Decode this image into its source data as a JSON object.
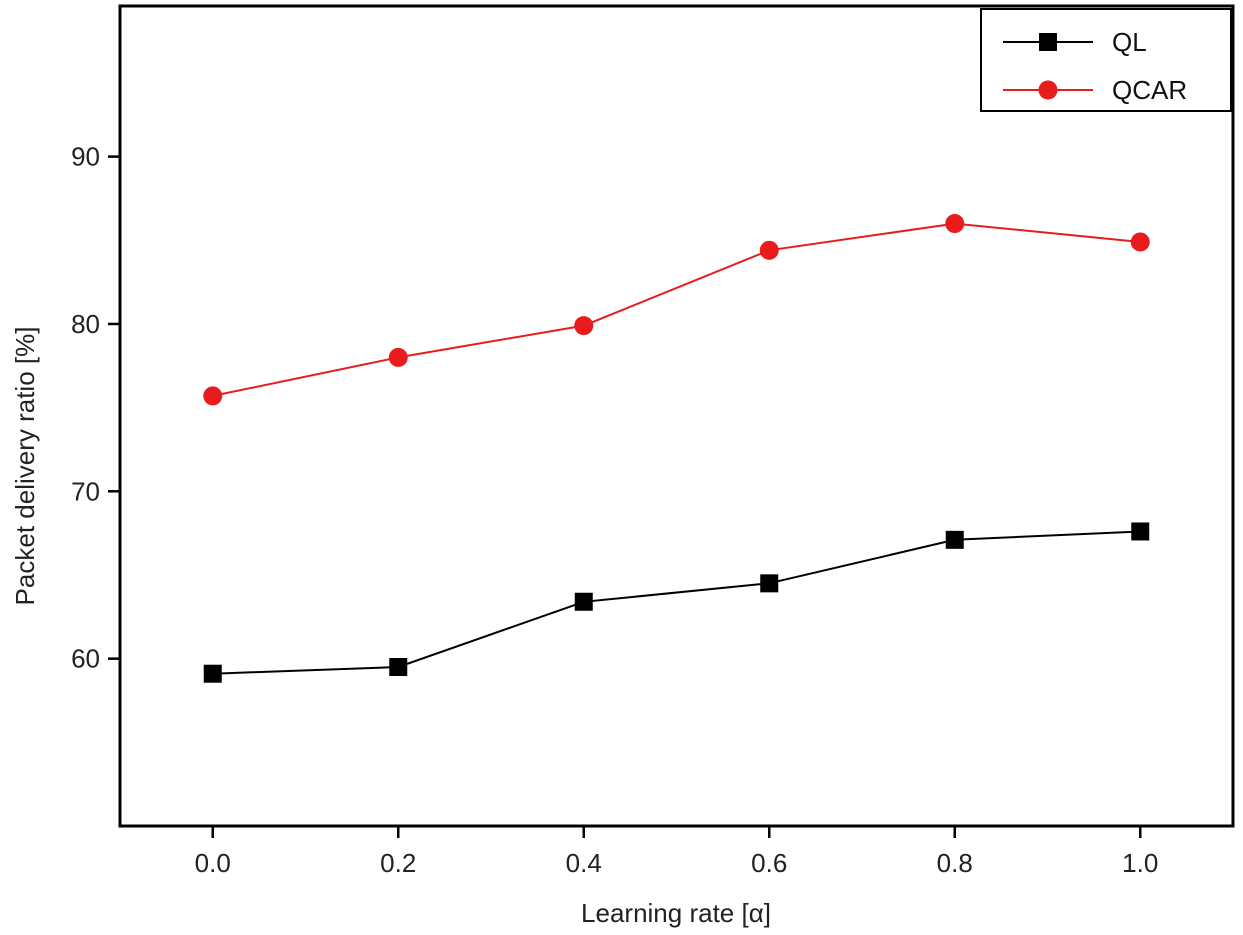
{
  "chart_data": {
    "type": "line",
    "title": "",
    "xlabel": "Learning rate [α]",
    "ylabel": "Packet delivery ratio [%]",
    "x": [
      0.0,
      0.2,
      0.4,
      0.6,
      0.8,
      1.0
    ],
    "x_tick_labels": [
      "0.0",
      "0.2",
      "0.4",
      "0.6",
      "0.8",
      "1.0"
    ],
    "y_ticks": [
      60,
      70,
      80,
      90
    ],
    "y_tick_labels": [
      "60",
      "70",
      "80",
      "90"
    ],
    "xlim": [
      -0.1,
      1.1
    ],
    "ylim": [
      50,
      99
    ],
    "grid": false,
    "legend_position": "top-right",
    "series": [
      {
        "name": "QL",
        "marker": "square",
        "color": "#000000",
        "values": [
          59.1,
          59.5,
          63.4,
          64.5,
          67.1,
          67.6
        ]
      },
      {
        "name": "QCAR",
        "marker": "circle",
        "color": "#e81c1c",
        "values": [
          75.7,
          78.0,
          79.9,
          84.4,
          86.0,
          84.9
        ]
      }
    ]
  }
}
